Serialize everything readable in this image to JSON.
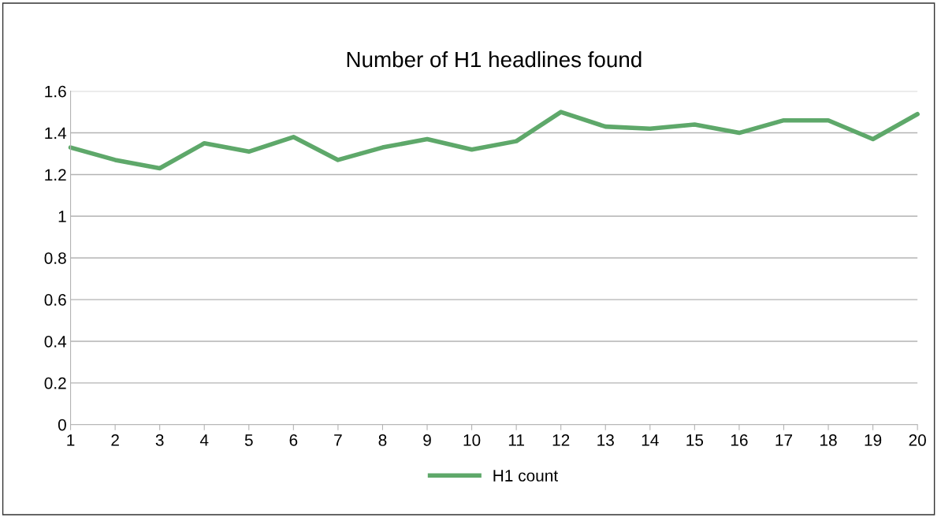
{
  "chart_data": {
    "type": "line",
    "title": "Number of H1 headlines found",
    "x": [
      1,
      2,
      3,
      4,
      5,
      6,
      7,
      8,
      9,
      10,
      11,
      12,
      13,
      14,
      15,
      16,
      17,
      18,
      19,
      20
    ],
    "series": [
      {
        "name": "H1 count",
        "color": "#5ea86a",
        "values": [
          1.33,
          1.27,
          1.23,
          1.35,
          1.31,
          1.38,
          1.27,
          1.33,
          1.37,
          1.32,
          1.36,
          1.5,
          1.43,
          1.42,
          1.44,
          1.4,
          1.46,
          1.46,
          1.37,
          1.49
        ]
      }
    ],
    "xlim": [
      1,
      20
    ],
    "xticks": [
      1,
      2,
      3,
      4,
      5,
      6,
      7,
      8,
      9,
      10,
      11,
      12,
      13,
      14,
      15,
      16,
      17,
      18,
      19,
      20
    ],
    "ylim": [
      0,
      1.6
    ],
    "yticks": [
      0,
      0.2,
      0.4,
      0.6,
      0.8,
      1,
      1.2,
      1.4,
      1.6
    ],
    "grid": "y",
    "legend": "bottom",
    "marker": "none",
    "line_style": "solid"
  }
}
